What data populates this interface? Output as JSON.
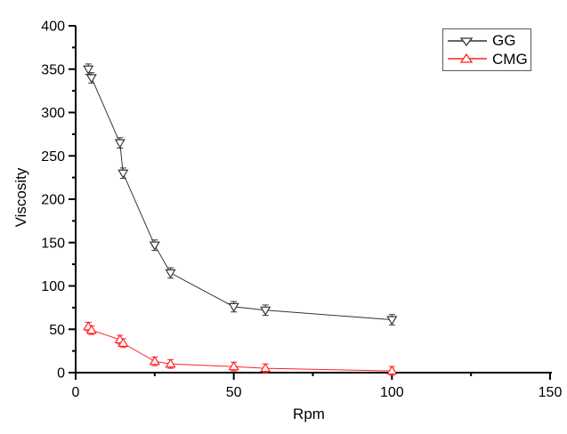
{
  "figure": {
    "background": "#ffffff",
    "axis_color": "#000000",
    "legend_border_color": "#595959"
  },
  "chart_data": {
    "type": "line",
    "title": "",
    "xlabel": "Rpm",
    "ylabel": "Viscosity",
    "xlim": [
      0,
      150
    ],
    "ylim": [
      0,
      400
    ],
    "x_major_ticks": [
      0,
      50,
      100,
      150
    ],
    "x_minor_ticks": [
      25,
      75,
      125
    ],
    "y_major_ticks": [
      0,
      50,
      100,
      150,
      200,
      250,
      300,
      350,
      400
    ],
    "y_minor_ticks": [
      25,
      75,
      125,
      175,
      225,
      275,
      325,
      375
    ],
    "grid": false,
    "legend_position": "top-right",
    "series": [
      {
        "name": "GG",
        "color": "#333333",
        "marker": "triangle-down",
        "marker_fill": "#ffffff",
        "error": 6,
        "points": [
          [
            4,
            350
          ],
          [
            5,
            340
          ],
          [
            14,
            265
          ],
          [
            15,
            230
          ],
          [
            25,
            147
          ],
          [
            30,
            115
          ],
          [
            50,
            76
          ],
          [
            60,
            72
          ],
          [
            100,
            61
          ]
        ]
      },
      {
        "name": "CMG",
        "color": "#ff2222",
        "marker": "triangle-up",
        "marker_fill": "#ffffff",
        "error": 5,
        "points": [
          [
            4,
            53
          ],
          [
            5,
            49
          ],
          [
            14,
            38
          ],
          [
            15,
            34
          ],
          [
            25,
            13
          ],
          [
            30,
            10
          ],
          [
            50,
            7
          ],
          [
            60,
            5
          ],
          [
            100,
            2
          ]
        ]
      }
    ]
  }
}
